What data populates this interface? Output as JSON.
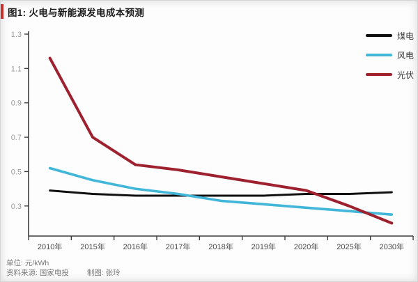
{
  "figure": {
    "title": "图1: 火电与新能源发电成本预测",
    "accent_color": "#c5302c"
  },
  "footer": {
    "unit": "单位: 元/kWh",
    "source": "资料来源: 国家电投",
    "credit": "制图: 张玲"
  },
  "chart_data": {
    "type": "line",
    "title": "图1: 火电与新能源发电成本预测",
    "categories": [
      "2010年",
      "2015年",
      "2016年",
      "2017年",
      "2018年",
      "2019年",
      "2020年",
      "2025年",
      "2030年"
    ],
    "series": [
      {
        "key": "coal",
        "name": "煤电",
        "color": "#101010",
        "line_width": 3,
        "values": [
          0.39,
          0.37,
          0.36,
          0.36,
          0.36,
          0.36,
          0.37,
          0.37,
          0.38
        ]
      },
      {
        "key": "wind",
        "name": "风电",
        "color": "#41b6d9",
        "line_width": 3.6,
        "values": [
          0.52,
          0.45,
          0.4,
          0.37,
          0.33,
          0.31,
          0.29,
          0.27,
          0.25
        ]
      },
      {
        "key": "pv",
        "name": "光伏",
        "color": "#9e2130",
        "line_width": 4,
        "values": [
          1.16,
          0.7,
          0.54,
          0.51,
          0.47,
          0.43,
          0.39,
          0.3,
          0.2
        ]
      }
    ],
    "ylabel": "",
    "xlabel": "",
    "yticks": [
      0.3,
      0.5,
      0.7,
      0.9,
      1.1,
      1.3
    ],
    "ylim": [
      0.125,
      1.3
    ],
    "grid": false,
    "legend_position": "top-right",
    "axis_color": "#3d3d3d",
    "ytick_color": "#9b9b9b",
    "xtick_color": "#4a4a4a"
  }
}
